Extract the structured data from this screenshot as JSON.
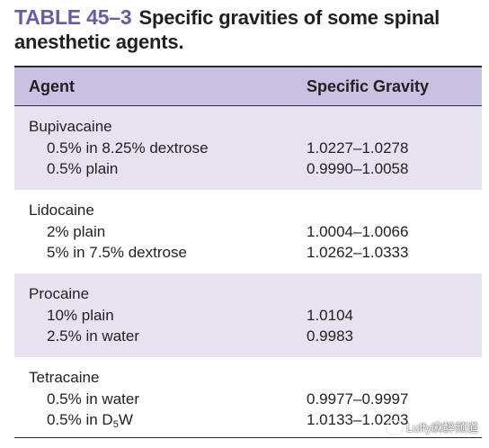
{
  "caption": {
    "label": "TABLE 45–3",
    "title": "Specific gravities of some spinal anesthetic agents."
  },
  "table": {
    "headers": {
      "agent": "Agent",
      "specific_gravity": "Specific Gravity"
    },
    "groups": [
      {
        "name": "Bupivacaine",
        "rows": [
          {
            "prep": "0.5% in 8.25% dextrose",
            "sg": "1.0227–1.0278"
          },
          {
            "prep": "0.5% plain",
            "sg": "0.9990–1.0058"
          }
        ]
      },
      {
        "name": "Lidocaine",
        "rows": [
          {
            "prep": "2% plain",
            "sg": "1.0004–1.0066"
          },
          {
            "prep": "5% in 7.5% dextrose",
            "sg": "1.0262–1.0333"
          }
        ]
      },
      {
        "name": "Procaine",
        "rows": [
          {
            "prep": "10% plain",
            "sg": "1.0104"
          },
          {
            "prep": "2.5% in water",
            "sg": "0.9983"
          }
        ]
      },
      {
        "name": "Tetracaine",
        "rows": [
          {
            "prep": "0.5% in water",
            "sg": "0.9977–0.9997"
          },
          {
            "prep_main": "0.5% in D",
            "prep_sub": "5",
            "prep_tail": "W",
            "sg": "1.0133–1.0203"
          }
        ]
      }
    ]
  },
  "watermark": {
    "text": "Luffy麻醉频道"
  }
}
